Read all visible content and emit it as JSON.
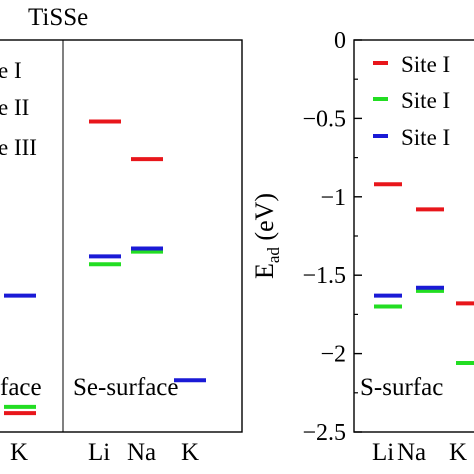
{
  "chart_data": [
    {
      "type": "scatter",
      "title": "TiSSe",
      "ylabel": "",
      "ylim": [
        -2.5,
        0
      ],
      "panels": [
        {
          "label": "S-surface",
          "categories": [
            "Li",
            "Na",
            "K"
          ],
          "series": [
            {
              "name": "Site I",
              "color": "#e8161b",
              "values": [
                null,
                null,
                -2.38
              ]
            },
            {
              "name": "Site II",
              "color": "#22dd22",
              "values": [
                null,
                null,
                -2.34
              ]
            },
            {
              "name": "Site III",
              "color": "#1a1ad6",
              "values": [
                null,
                null,
                -1.63
              ]
            }
          ]
        },
        {
          "label": "Se-surface",
          "categories": [
            "Li",
            "Na",
            "K"
          ],
          "series": [
            {
              "name": "Site I",
              "color": "#e8161b",
              "values": [
                -0.52,
                -0.76,
                null
              ]
            },
            {
              "name": "Site II",
              "color": "#22dd22",
              "values": [
                -1.43,
                -1.35,
                null
              ]
            },
            {
              "name": "Site III",
              "color": "#1a1ad6",
              "values": [
                -1.38,
                -1.33,
                -2.17
              ]
            }
          ]
        }
      ],
      "legend": {
        "entries": [
          "Site I",
          "Site II",
          "Site III"
        ],
        "placement": "top-left"
      }
    },
    {
      "type": "scatter",
      "title": "",
      "ylabel": "E_ad (eV)",
      "ylim": [
        -2.5,
        0
      ],
      "yticks": [
        0,
        -0.5,
        -1,
        -1.5,
        -2,
        -2.5
      ],
      "ytick_labels": [
        "0",
        "−0.5",
        "−1",
        "−1.5",
        "−2",
        "−2.5"
      ],
      "panels": [
        {
          "label": "S-surface",
          "categories": [
            "Li",
            "Na",
            "K"
          ],
          "series": [
            {
              "name": "Site I",
              "color": "#e8161b",
              "values": [
                -0.92,
                -1.08,
                -1.68
              ]
            },
            {
              "name": "Site II",
              "color": "#22dd22",
              "values": [
                -1.7,
                -1.6,
                -2.06
              ]
            },
            {
              "name": "Site III",
              "color": "#1a1ad6",
              "values": [
                -1.63,
                -1.58,
                null
              ]
            }
          ]
        }
      ],
      "legend": {
        "entries": [
          "Site I",
          "Site II",
          "Site III"
        ],
        "placement": "top-left"
      }
    }
  ],
  "visible_text": {
    "left_title": "TiSSe",
    "left_legend": [
      "e I",
      "e II",
      "e III"
    ],
    "left_panel1_label": "face",
    "left_panel1_ticks": [
      "K"
    ],
    "left_panel2_label": "Se-surface",
    "left_panel2_ticks": [
      "Li",
      "Na",
      "K"
    ],
    "right_ylabel_main": "E",
    "right_ylabel_sub": "ad",
    "right_ylabel_rest": " (eV)",
    "right_legend": [
      "Site I",
      "Site I",
      "Site I"
    ],
    "right_panel_label": "S-surfac",
    "right_ticks": [
      "Li",
      "Na",
      "K"
    ]
  }
}
